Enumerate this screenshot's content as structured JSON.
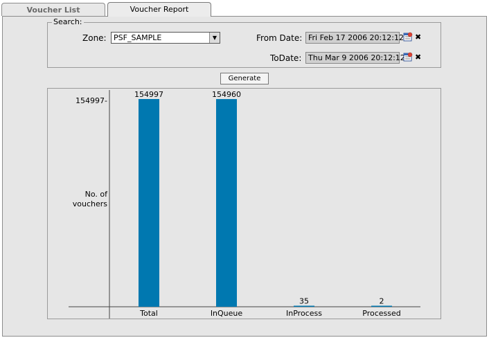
{
  "tabs": [
    {
      "label": "Voucher List"
    },
    {
      "label": "Voucher Report"
    }
  ],
  "search": {
    "legend": "Search:",
    "zone_label": "Zone:",
    "zone_value": "PSF_SAMPLE",
    "from_label": "From Date:",
    "from_value": "Fri Feb 17 2006 20:12:12",
    "to_label": "ToDate:",
    "to_value": "Thu Mar 9 2006 20:12:12"
  },
  "generate_label": "Generate",
  "icons": [
    "calendar-icon",
    "clear-icon",
    "dropdown-arrow-icon"
  ],
  "colors": {
    "bar": "#0078b0",
    "panel": "#e6e6e6"
  },
  "chart_data": {
    "type": "bar",
    "categories": [
      "Total",
      "InQueue",
      "InProcess",
      "Processed"
    ],
    "values": [
      154997,
      154960,
      35,
      2
    ],
    "value_labels": [
      "154997",
      "154960",
      "35",
      "2"
    ],
    "ylabel_line1": "No. of",
    "ylabel_line2": "vouchers",
    "ymax_label": "154997-",
    "ylim": [
      0,
      154997
    ]
  }
}
